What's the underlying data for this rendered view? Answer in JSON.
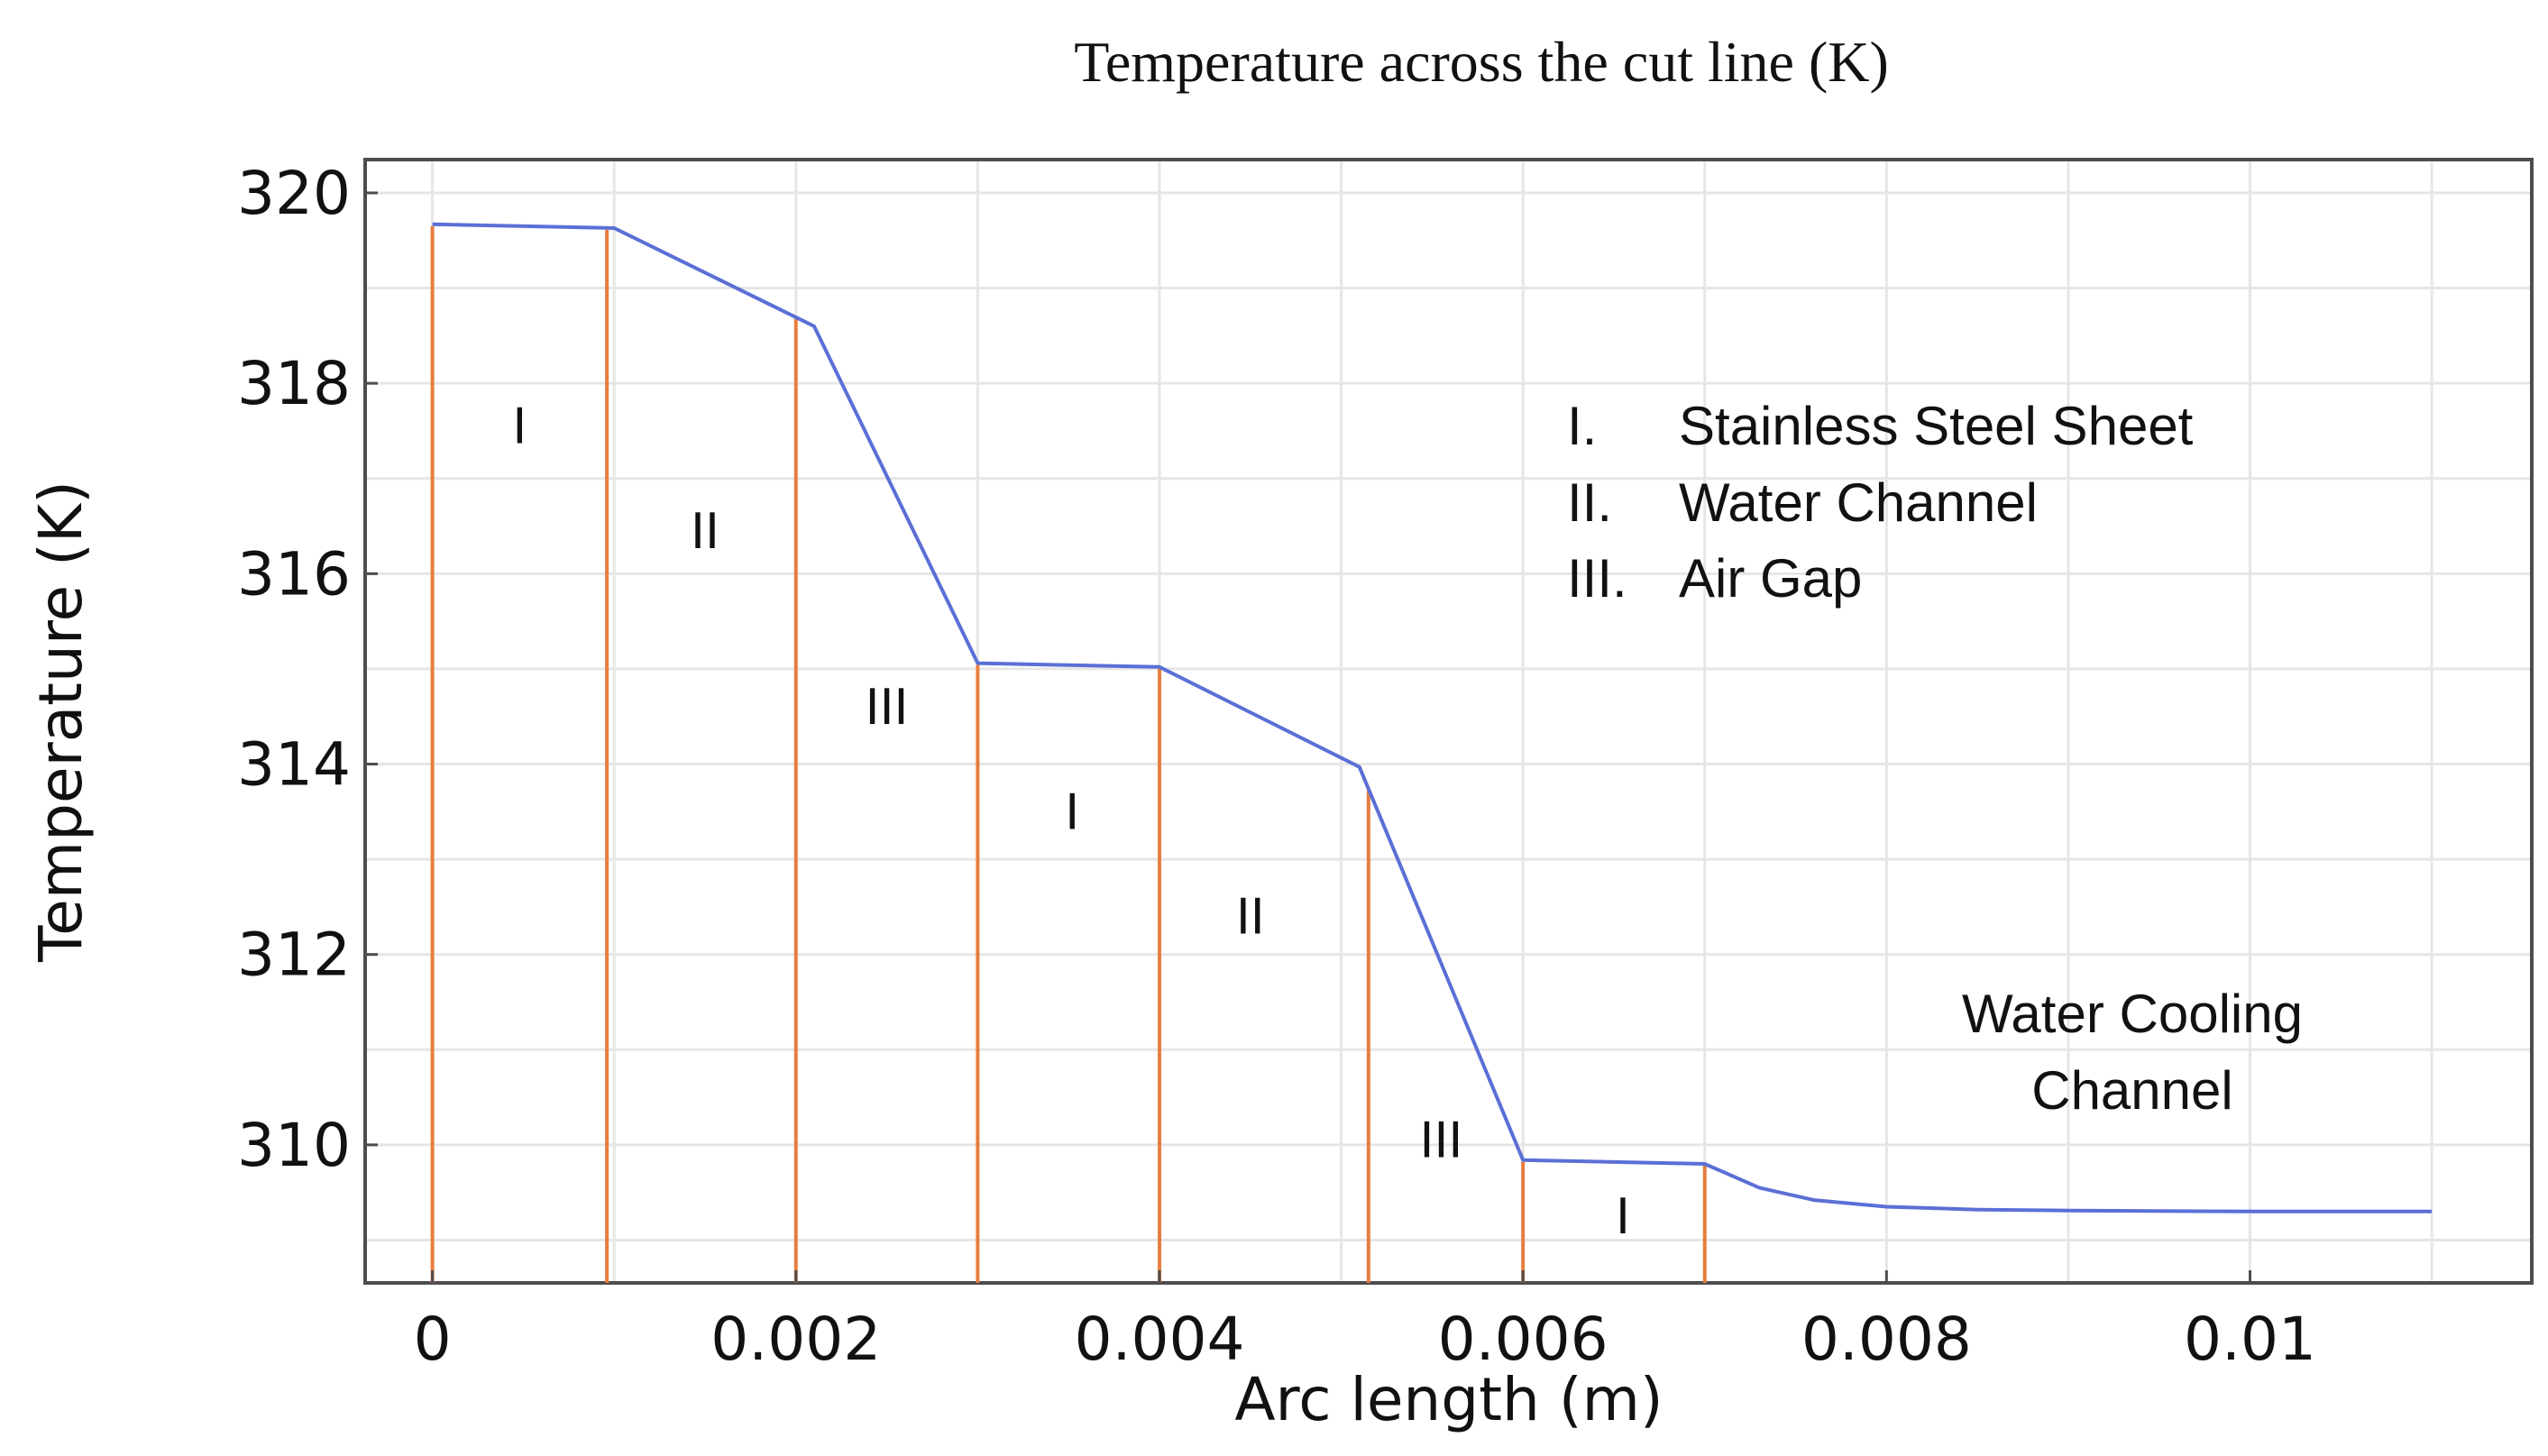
{
  "chart_data": {
    "type": "line",
    "title": "Temperature across the cut line (K)",
    "xlabel": "Arc length (m)",
    "ylabel": "Temperature (K)",
    "xlim": [
      -0.00037,
      0.01155
    ],
    "ylim": [
      308.55,
      320.35
    ],
    "x_ticks": [
      {
        "value": 0,
        "label": "0"
      },
      {
        "value": 0.002,
        "label": "0.002"
      },
      {
        "value": 0.004,
        "label": "0.004"
      },
      {
        "value": 0.006,
        "label": "0.006"
      },
      {
        "value": 0.008,
        "label": "0.008"
      },
      {
        "value": 0.01,
        "label": "0.01"
      }
    ],
    "y_ticks": [
      {
        "value": 310,
        "label": "310"
      },
      {
        "value": 312,
        "label": "312"
      },
      {
        "value": 314,
        "label": "314"
      },
      {
        "value": 316,
        "label": "316"
      },
      {
        "value": 318,
        "label": "318"
      },
      {
        "value": 320,
        "label": "320"
      }
    ],
    "grid": true,
    "series": [
      {
        "name": "Temperature",
        "color": "#5b6fd6",
        "x": [
          0,
          0.001,
          0.0021,
          0.003,
          0.004,
          0.0051,
          0.006,
          0.007,
          0.0073,
          0.0076,
          0.008,
          0.0085,
          0.009,
          0.01,
          0.011
        ],
        "y": [
          319.67,
          319.63,
          318.6,
          315.06,
          315.02,
          313.97,
          309.84,
          309.8,
          309.55,
          309.42,
          309.35,
          309.32,
          309.31,
          309.3,
          309.3
        ]
      }
    ],
    "boundaries": {
      "color": "#e87d3e",
      "x": [
        0,
        0.00096,
        0.002,
        0.003,
        0.004,
        0.00515,
        0.006,
        0.007
      ]
    },
    "regions": [
      {
        "label": "I",
        "x": 0.00048,
        "y": 317.55
      },
      {
        "label": "II",
        "x": 0.0015,
        "y": 316.45
      },
      {
        "label": "III",
        "x": 0.0025,
        "y": 314.6
      },
      {
        "label": "I",
        "x": 0.00352,
        "y": 313.5
      },
      {
        "label": "II",
        "x": 0.0045,
        "y": 312.4
      },
      {
        "label": "III",
        "x": 0.00555,
        "y": 310.05
      },
      {
        "label": "I",
        "x": 0.00655,
        "y": 309.25
      }
    ],
    "legend": {
      "position": "top-right",
      "items": [
        {
          "numeral": "I.",
          "text": "Stainless Steel Sheet"
        },
        {
          "numeral": "II.",
          "text": "Water Channel"
        },
        {
          "numeral": "III.",
          "text": "Air Gap"
        }
      ]
    },
    "annotation": {
      "lines": [
        "Water Cooling",
        "Channel"
      ]
    }
  }
}
